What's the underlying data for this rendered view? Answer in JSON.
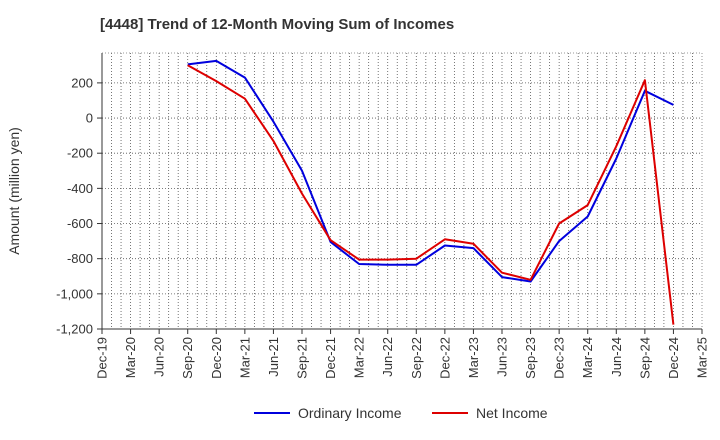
{
  "title": "[4448]  Trend of 12-Month Moving Sum of Incomes",
  "chart_data": {
    "type": "line",
    "title": "[4448]  Trend of 12-Month Moving Sum of Incomes",
    "ylabel": "Amount (million yen)",
    "xlabel": "",
    "x_tick_labels": [
      "Dec-19",
      "Mar-20",
      "Jun-20",
      "Sep-20",
      "Dec-20",
      "Mar-21",
      "Jun-21",
      "Sep-21",
      "Dec-21",
      "Mar-22",
      "Jun-22",
      "Sep-22",
      "Dec-22",
      "Mar-23",
      "Jun-23",
      "Sep-23",
      "Dec-23",
      "Mar-24",
      "Jun-24",
      "Sep-24",
      "Dec-24",
      "Mar-25"
    ],
    "y_ticks": [
      200,
      0,
      -200,
      -400,
      -600,
      -800,
      -1000,
      -1200
    ],
    "y_tick_labels": [
      "200",
      "0",
      "-200",
      "-400",
      "-600",
      "-800",
      "-1,000",
      "-1,200"
    ],
    "ylim": [
      -1200,
      370
    ],
    "grid": true,
    "legend_position": "bottom",
    "series": [
      {
        "name": "Ordinary Income",
        "color": "#0000dd",
        "x": [
          "Sep-20",
          "Dec-20",
          "Mar-21",
          "Jun-21",
          "Sep-21",
          "Dec-21",
          "Mar-22",
          "Jun-22",
          "Sep-22",
          "Dec-22",
          "Mar-23",
          "Jun-23",
          "Sep-23",
          "Dec-23",
          "Mar-24",
          "Jun-24",
          "Sep-24",
          "Dec-24"
        ],
        "values": [
          305,
          325,
          230,
          -20,
          -300,
          -705,
          -830,
          -835,
          -835,
          -725,
          -740,
          -905,
          -930,
          -700,
          -560,
          -230,
          155,
          75
        ]
      },
      {
        "name": "Net Income",
        "color": "#dd0000",
        "x": [
          "Sep-20",
          "Dec-20",
          "Mar-21",
          "Jun-21",
          "Sep-21",
          "Dec-21",
          "Mar-22",
          "Jun-22",
          "Sep-22",
          "Dec-22",
          "Mar-23",
          "Jun-23",
          "Sep-23",
          "Dec-23",
          "Mar-24",
          "Jun-24",
          "Sep-24",
          "Dec-24"
        ],
        "values": [
          300,
          210,
          110,
          -130,
          -430,
          -695,
          -805,
          -805,
          -800,
          -690,
          -715,
          -880,
          -920,
          -600,
          -495,
          -160,
          215,
          -1175
        ]
      }
    ]
  }
}
